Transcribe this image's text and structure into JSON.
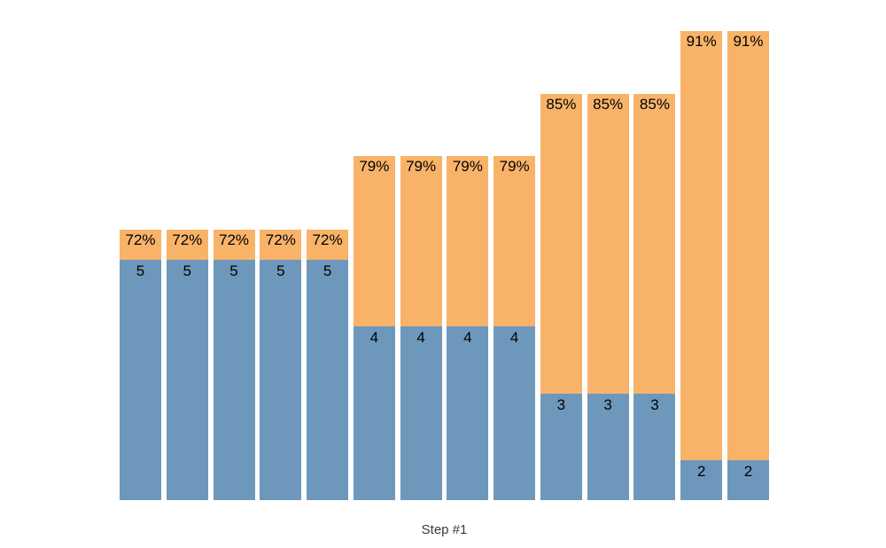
{
  "chart_data": {
    "type": "bar",
    "subtype": "overlaid-stacked-columns",
    "title": "",
    "xlabel": "Step #1",
    "ylabel": "",
    "grid": false,
    "y_axis_ticks_visible": false,
    "x_axis_ticks_visible": false,
    "legend_visible": false,
    "colors": {
      "value_series": "#6D98BC",
      "percent_series": "#F8B369",
      "bar_label_text": "#000000",
      "axis_label_text": "#3B3B3B",
      "background": "#FFFFFF"
    },
    "bars": [
      {
        "value": 5,
        "percent": 72,
        "value_label": "5",
        "percent_label": "72%"
      },
      {
        "value": 5,
        "percent": 72,
        "value_label": "5",
        "percent_label": "72%"
      },
      {
        "value": 5,
        "percent": 72,
        "value_label": "5",
        "percent_label": "72%"
      },
      {
        "value": 5,
        "percent": 72,
        "value_label": "5",
        "percent_label": "72%"
      },
      {
        "value": 5,
        "percent": 72,
        "value_label": "5",
        "percent_label": "72%"
      },
      {
        "value": 4,
        "percent": 79,
        "value_label": "4",
        "percent_label": "79%"
      },
      {
        "value": 4,
        "percent": 79,
        "value_label": "4",
        "percent_label": "79%"
      },
      {
        "value": 4,
        "percent": 79,
        "value_label": "4",
        "percent_label": "79%"
      },
      {
        "value": 4,
        "percent": 79,
        "value_label": "4",
        "percent_label": "79%"
      },
      {
        "value": 3,
        "percent": 85,
        "value_label": "3",
        "percent_label": "85%"
      },
      {
        "value": 3,
        "percent": 85,
        "value_label": "3",
        "percent_label": "85%"
      },
      {
        "value": 3,
        "percent": 85,
        "value_label": "3",
        "percent_label": "85%"
      },
      {
        "value": 2,
        "percent": 91,
        "value_label": "2",
        "percent_label": "91%"
      },
      {
        "value": 2,
        "percent": 91,
        "value_label": "2",
        "percent_label": "91%"
      }
    ]
  }
}
